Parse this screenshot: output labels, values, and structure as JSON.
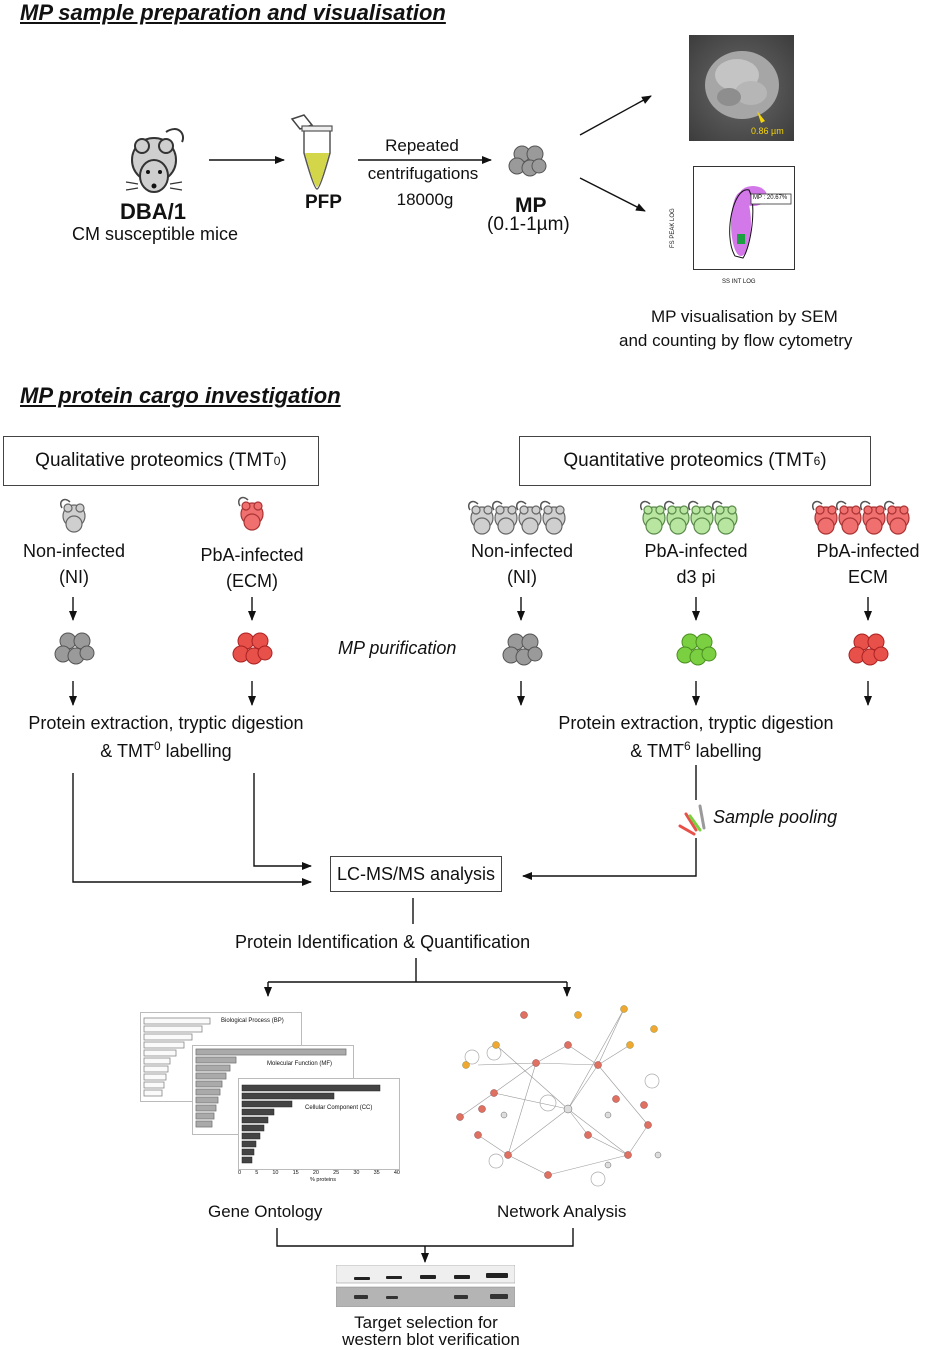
{
  "section1": {
    "title": "MP sample preparation and visualisation",
    "mouse_name": "DBA/1",
    "mouse_desc": "CM susceptible mice",
    "pfp": "PFP",
    "centrifugation_line1": "Repeated",
    "centrifugation_line2": "centrifugations",
    "centrifugation_line3": "18000g",
    "mp": "MP",
    "mp_size": "(0.1-1µm)",
    "sem_scale": "0.86 µm",
    "flow_gate": "MP : 20.67%",
    "flow_xlabel": "SS INT LOG",
    "flow_ylabel": "FS PEAK LOG",
    "visualisation_line1": "MP visualisation by SEM",
    "visualisation_line2": "and counting by flow cytometry"
  },
  "section2": {
    "title": "MP protein cargo investigation",
    "qual_box": "Qualitative proteomics (TMT",
    "qual_sup": "0",
    "quant_box": "Quantitative proteomics (TMT",
    "quant_sup": "6",
    "close_paren": ")",
    "qual_groups": [
      {
        "line1": "Non-infected",
        "line2": "(NI)"
      },
      {
        "line1": "PbA-infected",
        "line2": "(ECM)"
      }
    ],
    "quant_groups": [
      {
        "line1": "Non-infected",
        "line2": "(NI)"
      },
      {
        "line1": "PbA-infected",
        "line2": "d3 pi"
      },
      {
        "line1": "PbA-infected",
        "line2": "ECM"
      }
    ],
    "mp_purification": "MP purification",
    "extraction_line1": "Protein extraction, tryptic digestion",
    "qual_labelling_pre": "& TMT",
    "qual_labelling_sup": "0",
    "quant_labelling_pre": "& TMT",
    "quant_labelling_sup": "6",
    "labelling_post": " labelling",
    "sample_pooling": "Sample pooling",
    "lcms": "LC-MS/MS analysis",
    "identification": "Protein Identification & Quantification",
    "go_bp": "Biological Process (BP)",
    "go_mf": "Molecular Function (MF)",
    "go_cc": "Cellular Component (CC)",
    "go_xlabel": "% proteins",
    "go_ticks": [
      "0",
      "5",
      "10",
      "15",
      "20",
      "25",
      "30",
      "35",
      "40"
    ],
    "gene_ontology": "Gene Ontology",
    "network_analysis": "Network Analysis",
    "target_line1": "Target selection for",
    "target_line2": "western blot verification"
  },
  "colors": {
    "grey_mouse": "#cfcfcf",
    "red_mouse": "#f07070",
    "green_mouse": "#b8e6a0",
    "grey_mp": "#9a9a9a",
    "red_mp": "#e8504a",
    "green_mp": "#7ad040",
    "pfp_liquid": "#d4d64a"
  }
}
